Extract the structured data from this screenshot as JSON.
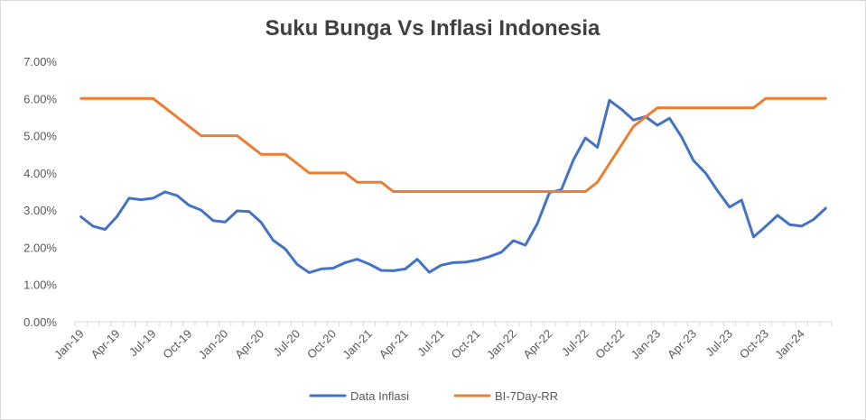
{
  "chart_data": {
    "type": "line",
    "title": "Suku Bunga Vs Inflasi Indonesia",
    "xlabel": "",
    "ylabel": "",
    "ylim": [
      0,
      7
    ],
    "y_ticks": [
      "0.00%",
      "1.00%",
      "2.00%",
      "3.00%",
      "4.00%",
      "5.00%",
      "6.00%",
      "7.00%"
    ],
    "x_tick_labels": [
      "Jan-19",
      "Apr-19",
      "Jul-19",
      "Oct-19",
      "Jan-20",
      "Apr-20",
      "Jul-20",
      "Oct-20",
      "Jan-21",
      "Apr-21",
      "Jul-21",
      "Oct-21",
      "Jan-22",
      "Apr-22",
      "Jul-22",
      "Oct-22",
      "Jan-23",
      "Apr-23",
      "Jul-23",
      "Oct-23",
      "Jan-24"
    ],
    "grid": false,
    "legend_position": "bottom",
    "categories": [
      "Jan-19",
      "Feb-19",
      "Mar-19",
      "Apr-19",
      "May-19",
      "Jun-19",
      "Jul-19",
      "Aug-19",
      "Sep-19",
      "Oct-19",
      "Nov-19",
      "Dec-19",
      "Jan-20",
      "Feb-20",
      "Mar-20",
      "Apr-20",
      "May-20",
      "Jun-20",
      "Jul-20",
      "Aug-20",
      "Sep-20",
      "Oct-20",
      "Nov-20",
      "Dec-20",
      "Jan-21",
      "Feb-21",
      "Mar-21",
      "Apr-21",
      "May-21",
      "Jun-21",
      "Jul-21",
      "Aug-21",
      "Sep-21",
      "Oct-21",
      "Nov-21",
      "Dec-21",
      "Jan-22",
      "Feb-22",
      "Mar-22",
      "Apr-22",
      "May-22",
      "Jun-22",
      "Jul-22",
      "Aug-22",
      "Sep-22",
      "Oct-22",
      "Nov-22",
      "Dec-22",
      "Jan-23",
      "Feb-23",
      "Mar-23",
      "Apr-23",
      "May-23",
      "Jun-23",
      "Jul-23",
      "Aug-23",
      "Sep-23",
      "Oct-23",
      "Nov-23",
      "Dec-23",
      "Jan-24",
      "Feb-24",
      "Mar-24"
    ],
    "series": [
      {
        "name": "Data Inflasi",
        "color": "#4472C4",
        "values": [
          2.82,
          2.57,
          2.48,
          2.83,
          3.32,
          3.28,
          3.32,
          3.49,
          3.39,
          3.13,
          3.0,
          2.72,
          2.68,
          2.98,
          2.96,
          2.67,
          2.19,
          1.96,
          1.54,
          1.32,
          1.42,
          1.44,
          1.59,
          1.68,
          1.55,
          1.38,
          1.37,
          1.42,
          1.68,
          1.33,
          1.52,
          1.59,
          1.6,
          1.66,
          1.75,
          1.87,
          2.18,
          2.06,
          2.64,
          3.47,
          3.55,
          4.35,
          4.94,
          4.69,
          5.95,
          5.71,
          5.42,
          5.51,
          5.28,
          5.47,
          4.97,
          4.33,
          4.0,
          3.52,
          3.08,
          3.27,
          2.28,
          2.56,
          2.86,
          2.61,
          2.57,
          2.75,
          3.05
        ]
      },
      {
        "name": "BI-7Day-RR",
        "color": "#ED7D31",
        "values": [
          6.0,
          6.0,
          6.0,
          6.0,
          6.0,
          6.0,
          6.0,
          5.75,
          5.5,
          5.25,
          5.0,
          5.0,
          5.0,
          5.0,
          4.75,
          4.5,
          4.5,
          4.5,
          4.25,
          4.0,
          4.0,
          4.0,
          4.0,
          3.75,
          3.75,
          3.75,
          3.5,
          3.5,
          3.5,
          3.5,
          3.5,
          3.5,
          3.5,
          3.5,
          3.5,
          3.5,
          3.5,
          3.5,
          3.5,
          3.5,
          3.5,
          3.5,
          3.5,
          3.75,
          4.25,
          4.75,
          5.25,
          5.5,
          5.75,
          5.75,
          5.75,
          5.75,
          5.75,
          5.75,
          5.75,
          5.75,
          5.75,
          6.0,
          6.0,
          6.0,
          6.0,
          6.0,
          6.0
        ]
      }
    ]
  }
}
